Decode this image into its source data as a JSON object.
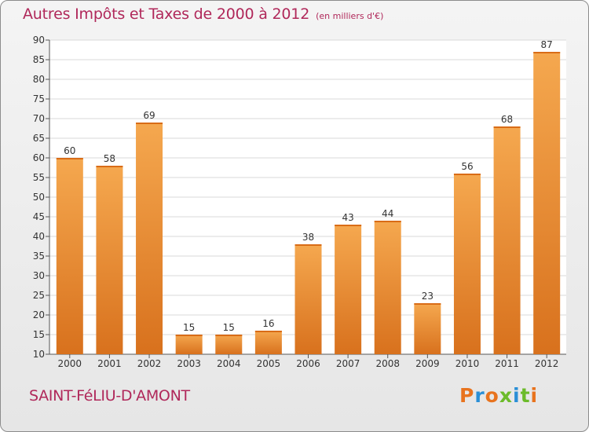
{
  "chart_data": {
    "type": "bar",
    "title": "Autres Impôts et Taxes de 2000 à 2012",
    "subtitle": "(en milliers d'€)",
    "categories": [
      "2000",
      "2001",
      "2002",
      "2003",
      "2004",
      "2005",
      "2006",
      "2007",
      "2008",
      "2009",
      "2010",
      "2011",
      "2012"
    ],
    "values": [
      60,
      58,
      69,
      15,
      15,
      16,
      38,
      43,
      44,
      23,
      56,
      68,
      87
    ],
    "ylim": [
      10,
      90
    ],
    "yticks": [
      10,
      15,
      20,
      25,
      30,
      35,
      40,
      45,
      50,
      55,
      60,
      65,
      70,
      75,
      80,
      85,
      90
    ],
    "grid": true,
    "bar_color_top": "#f5a84f",
    "bar_color_bottom": "#d8711d"
  },
  "footer": {
    "commune": "SAINT-FéLIU-D'AMONT",
    "brand": "Proxiti"
  },
  "brand_colors": [
    "#e8731e",
    "#2a8fd6",
    "#e8731e",
    "#6cbb2a",
    "#2a8fd6",
    "#6cbb2a",
    "#e8731e"
  ]
}
